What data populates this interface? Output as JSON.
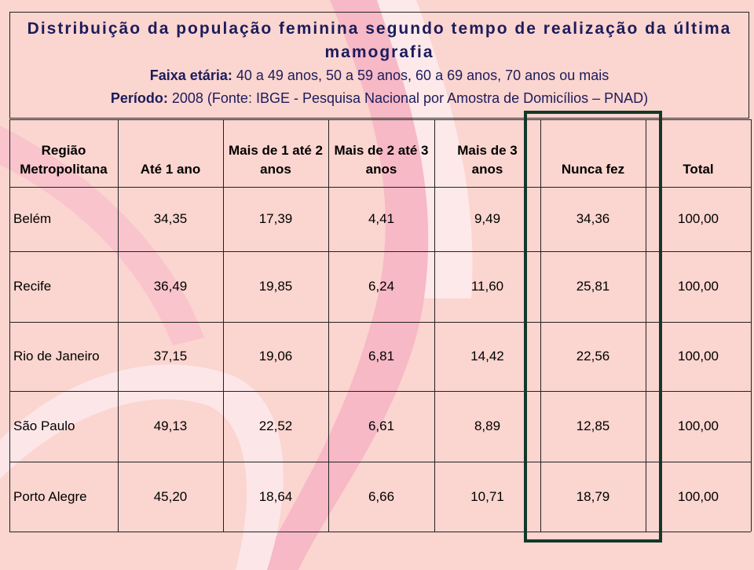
{
  "header": {
    "title": "Distribuição da população feminina segundo tempo de realização da última mamografia",
    "lines": [
      {
        "label": "Faixa etária:",
        "text": "40 a 49 anos, 50 a 59 anos, 60 a 69 anos, 70 anos ou mais"
      },
      {
        "label": "Período:",
        "text": "2008 (Fonte: IBGE - Pesquisa Nacional por Amostra de Domicílios – PNAD)"
      }
    ]
  },
  "table": {
    "columns": [
      "Região Metropolitana",
      "Até 1 ano",
      "Mais de 1 até 2 anos",
      "Mais de 2 até 3 anos",
      "Mais de 3 anos",
      "Nunca fez",
      "Total"
    ],
    "rows": [
      [
        "Belém",
        "34,35",
        "17,39",
        "4,41",
        "9,49",
        "34,36",
        "100,00"
      ],
      [
        "Recife",
        "36,49",
        "19,85",
        "6,24",
        "11,60",
        "25,81",
        "100,00"
      ],
      [
        "Rio de Janeiro",
        "37,15",
        "19,06",
        "6,81",
        "14,42",
        "22,56",
        "100,00"
      ],
      [
        "São Paulo",
        "49,13",
        "22,52",
        "6,61",
        "8,89",
        "12,85",
        "100,00"
      ],
      [
        "Porto Alegre",
        "45,20",
        "18,64",
        "6,66",
        "10,71",
        "18,79",
        "100,00"
      ]
    ]
  }
}
